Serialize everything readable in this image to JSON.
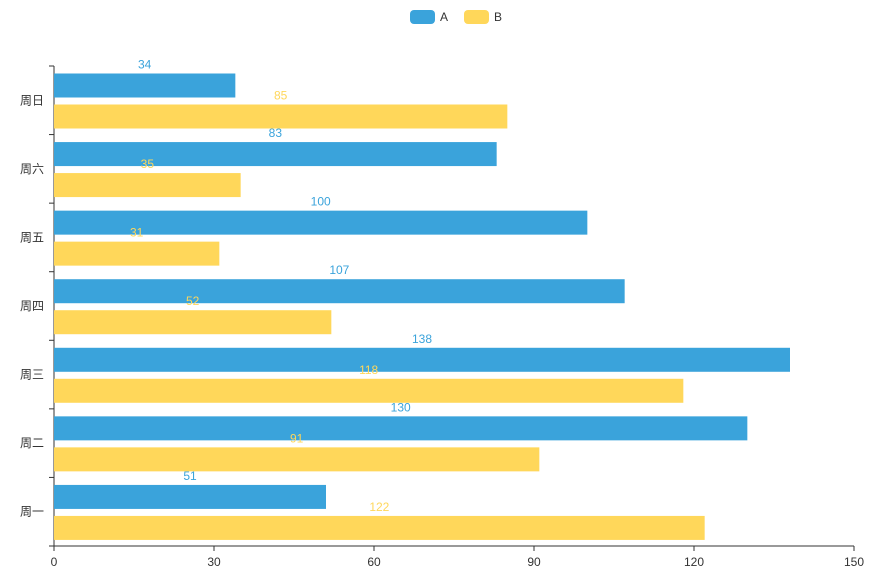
{
  "chart_data": {
    "type": "bar",
    "orientation": "horizontal",
    "categories": [
      "周一",
      "周二",
      "周三",
      "周四",
      "周五",
      "周六",
      "周日"
    ],
    "series": [
      {
        "name": "A",
        "color": "#3aa3db",
        "values": [
          51,
          130,
          138,
          107,
          100,
          83,
          34
        ]
      },
      {
        "name": "B",
        "color": "#ffd75a",
        "values": [
          122,
          91,
          118,
          52,
          31,
          35,
          85
        ]
      }
    ],
    "x_ticks": [
      0,
      30,
      60,
      90,
      120,
      150
    ],
    "xlim": [
      0,
      150
    ],
    "legend_position": "top-center",
    "grid": false,
    "data_labels": true
  },
  "legend": {
    "a_label": "A",
    "b_label": "B",
    "a_color": "#3aa3db",
    "b_color": "#ffd75a"
  }
}
